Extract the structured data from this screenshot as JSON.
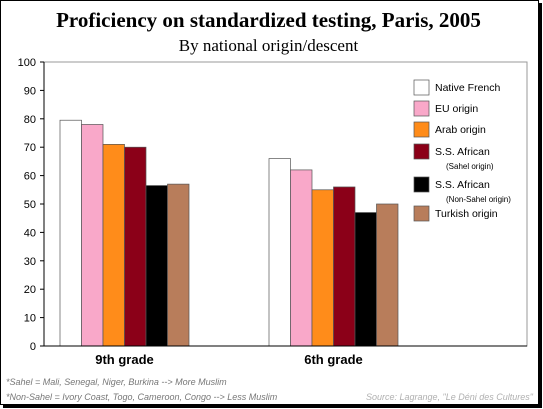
{
  "chart_data": {
    "type": "bar",
    "title": "Proficiency on standardized testing, Paris, 2005",
    "subtitle": "By national origin/descent",
    "categories": [
      "9th grade",
      "6th grade"
    ],
    "ylim": [
      0,
      100
    ],
    "yticks": [
      0,
      10,
      20,
      30,
      40,
      50,
      60,
      70,
      80,
      90,
      100
    ],
    "grid": false,
    "legend_position": "right",
    "series": [
      {
        "name": "Native French",
        "note": "",
        "color": "#ffffff",
        "values": [
          79.5,
          66
        ]
      },
      {
        "name": "EU origin",
        "note": "",
        "color": "#f9a8c9",
        "values": [
          78,
          62
        ]
      },
      {
        "name": "Arab origin",
        "note": "",
        "color": "#ff8c1a",
        "values": [
          71,
          55
        ]
      },
      {
        "name": "S.S. African",
        "note": "(Sahel origin)",
        "color": "#8b0018",
        "values": [
          70,
          56
        ]
      },
      {
        "name": "S.S. African",
        "note": "(Non-Sahel origin)",
        "color": "#000000",
        "values": [
          56.5,
          47
        ]
      },
      {
        "name": "Turkish origin",
        "note": "",
        "color": "#b87d5b",
        "values": [
          57,
          50
        ]
      }
    ]
  },
  "footnotes": [
    "*Sahel = Mali, Senegal, Niger, Burkina --> More Muslim",
    "*Non-Sahel = Ivory Coast, Togo, Cameroon, Congo --> Less Muslim"
  ],
  "source": "Source: Lagrange, \"Le Déni des Cultures\""
}
